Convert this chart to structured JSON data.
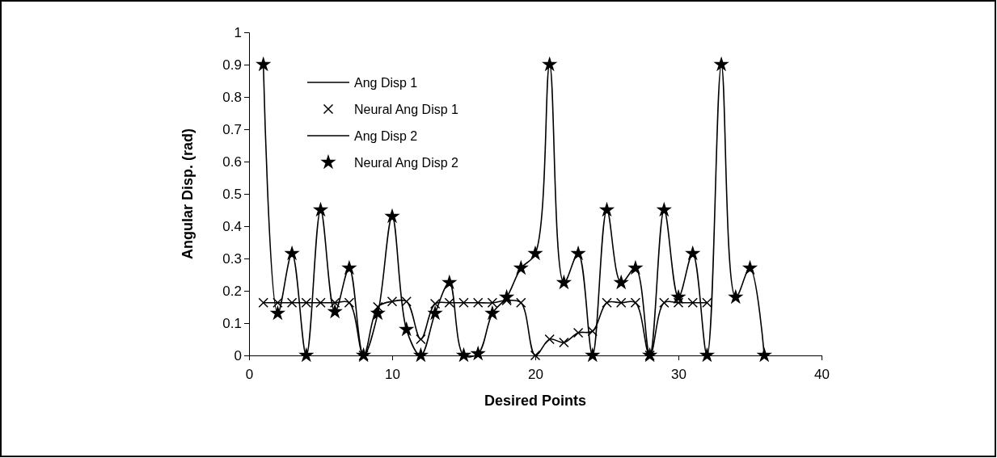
{
  "chart_data": {
    "type": "line",
    "xlabel": "Desired Points",
    "ylabel": "Angular Disp. (rad)",
    "xlim": [
      0,
      40
    ],
    "xticks": [
      0,
      10,
      20,
      30,
      40
    ],
    "ylim": [
      0,
      1
    ],
    "yticks": [
      0,
      0.1,
      0.2,
      0.3,
      0.4,
      0.5,
      0.6,
      0.7,
      0.8,
      0.9,
      1
    ],
    "grid": false,
    "legend": "top left",
    "x": [
      1,
      2,
      3,
      4,
      5,
      6,
      7,
      8,
      9,
      10,
      11,
      12,
      13,
      14,
      15,
      16,
      17,
      18,
      19,
      20,
      21,
      22,
      23,
      24,
      25,
      26,
      27,
      28,
      29,
      30,
      31,
      32,
      33,
      34,
      35,
      36
    ],
    "series": [
      {
        "name": "Ang Disp 1",
        "marker": "none",
        "line_style": "solid",
        "color": "#000000",
        "values": [
          0.163,
          0.163,
          0.163,
          0.163,
          0.163,
          0.163,
          0.163,
          0,
          0.15,
          0.167,
          0.167,
          0.05,
          0.16,
          0.163,
          0.163,
          0.163,
          0.163,
          0.17,
          0.163,
          0,
          0.05,
          0.04,
          0.07,
          0.075,
          0.163,
          0.163,
          0.163,
          0,
          0.163,
          0.163,
          0.163,
          0.163,
          null,
          null,
          null,
          null
        ]
      },
      {
        "name": "Neural Ang Disp 1",
        "type": "scatter",
        "marker": "cross",
        "color": "#000000",
        "values": [
          0.163,
          0.163,
          0.163,
          0.163,
          0.163,
          0.163,
          0.163,
          0,
          0.15,
          0.167,
          0.167,
          0.05,
          0.16,
          0.163,
          0.163,
          0.163,
          0.163,
          0.17,
          0.163,
          0,
          0.05,
          0.04,
          0.07,
          0.075,
          0.163,
          0.163,
          0.163,
          0,
          0.163,
          0.163,
          0.163,
          0.163,
          null,
          null,
          null,
          null
        ]
      },
      {
        "name": "Ang Disp 2",
        "marker": "none",
        "line_style": "solid",
        "color": "#000000",
        "values": [
          0.9,
          0.13,
          0.315,
          0,
          0.45,
          0.135,
          0.27,
          0,
          0.13,
          0.43,
          0.08,
          0,
          0.13,
          0.225,
          0,
          0.005,
          0.13,
          0.18,
          0.27,
          0.315,
          0.9,
          0.225,
          0.315,
          0,
          0.45,
          0.225,
          0.27,
          0,
          0.45,
          0.18,
          0.315,
          0,
          0.9,
          0.18,
          0.27,
          0
        ]
      },
      {
        "name": "Neural Ang Disp 2",
        "type": "scatter",
        "marker": "star",
        "color": "#000000",
        "values": [
          0.9,
          0.13,
          0.315,
          0,
          0.45,
          0.135,
          0.27,
          0,
          0.13,
          0.43,
          0.08,
          0,
          0.13,
          0.225,
          0,
          0.005,
          0.13,
          0.18,
          0.27,
          0.315,
          0.9,
          0.225,
          0.315,
          0,
          0.45,
          0.225,
          0.27,
          0,
          0.45,
          0.18,
          0.315,
          0,
          0.9,
          0.18,
          0.27,
          0
        ]
      }
    ]
  }
}
